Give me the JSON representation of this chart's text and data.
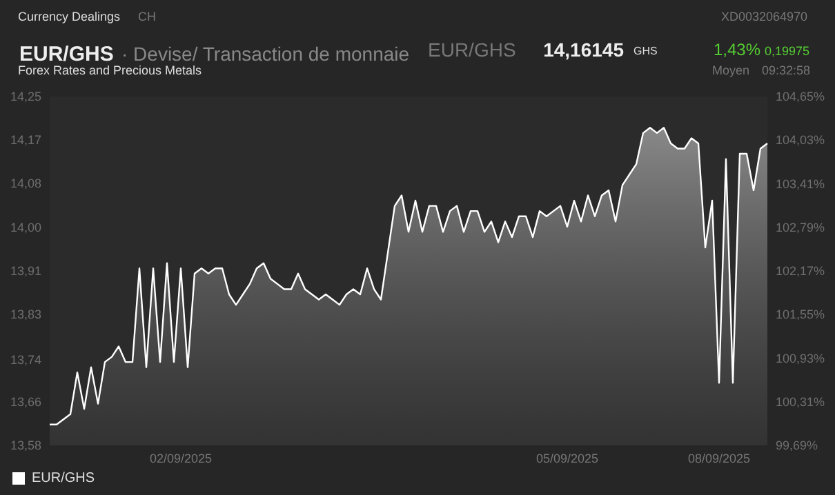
{
  "chart_data": {
    "type": "area",
    "title": "EUR/GHS",
    "subtitle": "· Devise/ Transaction de monnaie",
    "annotations": [
      "Currency Dealings",
      "CH",
      "XD0032064970",
      "EUR/GHS",
      "14,16145",
      "GHS",
      "1,43%",
      "0,19975",
      "Forex Rates and Precious Metals",
      "Moyen",
      "09:32:58"
    ],
    "categories": [
      null,
      null,
      null,
      null,
      null,
      null,
      null,
      null,
      null,
      null,
      null,
      null,
      null,
      null,
      null,
      null,
      null,
      null,
      null,
      "02/09/2025",
      null,
      null,
      null,
      null,
      null,
      null,
      null,
      null,
      null,
      null,
      null,
      null,
      null,
      null,
      null,
      null,
      null,
      null,
      null,
      null,
      null,
      null,
      null,
      null,
      null,
      null,
      null,
      null,
      null,
      null,
      null,
      null,
      null,
      null,
      null,
      null,
      null,
      null,
      null,
      null,
      null,
      null,
      null,
      null,
      null,
      null,
      null,
      null,
      null,
      null,
      null,
      null,
      null,
      null,
      null,
      "05/09/2025",
      null,
      null,
      null,
      null,
      null,
      null,
      null,
      null,
      null,
      null,
      null,
      null,
      null,
      null,
      null,
      null,
      null,
      null,
      null,
      null,
      null,
      "08/09/2025",
      null,
      null,
      null,
      null,
      null,
      null,
      null
    ],
    "series": [
      {
        "name": "EUR/GHS",
        "color": "#ffffff",
        "values": [
          13.62,
          13.62,
          13.63,
          13.64,
          13.72,
          13.65,
          13.73,
          13.66,
          13.74,
          13.75,
          13.77,
          13.74,
          13.74,
          13.92,
          13.73,
          13.92,
          13.74,
          13.93,
          13.74,
          13.92,
          13.73,
          13.91,
          13.92,
          13.91,
          13.92,
          13.92,
          13.87,
          13.85,
          13.87,
          13.89,
          13.92,
          13.93,
          13.9,
          13.89,
          13.88,
          13.88,
          13.91,
          13.88,
          13.87,
          13.86,
          13.87,
          13.86,
          13.85,
          13.87,
          13.88,
          13.87,
          13.92,
          13.88,
          13.86,
          13.95,
          14.04,
          14.06,
          13.99,
          14.05,
          13.99,
          14.04,
          14.04,
          13.99,
          14.03,
          14.04,
          13.99,
          14.03,
          14.03,
          13.99,
          14.01,
          13.97,
          14.01,
          13.98,
          14.02,
          14.02,
          13.98,
          14.03,
          14.02,
          14.03,
          14.04,
          14.0,
          14.05,
          14.01,
          14.06,
          14.02,
          14.06,
          14.07,
          14.01,
          14.08,
          14.1,
          14.12,
          14.18,
          14.19,
          14.18,
          14.19,
          14.16,
          14.15,
          14.15,
          14.17,
          14.16,
          13.96,
          14.05,
          13.7,
          14.13,
          13.7,
          14.14,
          14.14,
          14.07,
          14.15,
          14.16
        ]
      }
    ],
    "ylim": [
      13.58,
      14.25
    ],
    "yticks": [
      {
        "value": 13.58,
        "label": "13,58"
      },
      {
        "value": 13.664,
        "label": "13,66"
      },
      {
        "value": 13.744,
        "label": "13,74"
      },
      {
        "value": 13.831,
        "label": "13,83"
      },
      {
        "value": 13.915,
        "label": "13,91"
      },
      {
        "value": 13.999,
        "label": "14,00"
      },
      {
        "value": 14.083,
        "label": "14,08"
      },
      {
        "value": 14.166,
        "label": "14,17"
      },
      {
        "value": 14.25,
        "label": "14,25"
      }
    ],
    "y2lim": [
      99.69,
      104.65
    ],
    "y2ticks": [
      {
        "value": 99.69,
        "label": "99,69%"
      },
      {
        "value": 100.31,
        "label": "100,31%"
      },
      {
        "value": 100.93,
        "label": "100,93%"
      },
      {
        "value": 101.55,
        "label": "101,55%"
      },
      {
        "value": 102.17,
        "label": "102,17%"
      },
      {
        "value": 102.79,
        "label": "102,79%"
      },
      {
        "value": 103.41,
        "label": "103,41%"
      },
      {
        "value": 104.03,
        "label": "104,03%"
      },
      {
        "value": 104.65,
        "label": "104,65%"
      }
    ],
    "legend": "bottom left"
  }
}
